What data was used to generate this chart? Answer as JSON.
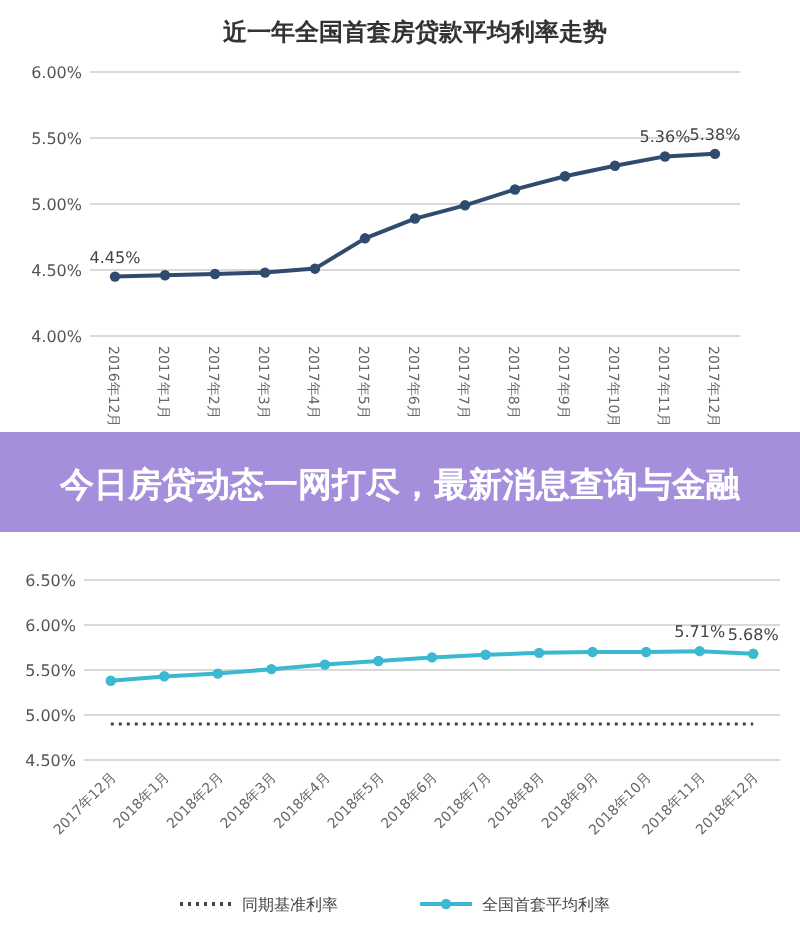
{
  "chart_data": [
    {
      "type": "line",
      "title": "近一年全国首套房贷款平均利率走势",
      "categories": [
        "2016年12月",
        "2017年1月",
        "2017年2月",
        "2017年3月",
        "2017年4月",
        "2017年5月",
        "2017年6月",
        "2017年7月",
        "2017年8月",
        "2017年9月",
        "2017年10月",
        "2017年11月",
        "2017年12月"
      ],
      "series": [
        {
          "color": "#2f4b6e",
          "values": [
            4.45,
            4.46,
            4.47,
            4.48,
            4.51,
            4.74,
            4.89,
            4.99,
            5.11,
            5.21,
            5.29,
            5.36,
            5.38
          ],
          "value_labels": [
            "4.45%",
            null,
            null,
            null,
            null,
            null,
            null,
            null,
            null,
            null,
            null,
            "5.36%",
            "5.38%"
          ]
        }
      ],
      "ylim": [
        4,
        6
      ],
      "yticks": [
        {
          "value": 4,
          "label": "4.00%"
        },
        {
          "value": 4.5,
          "label": "4.50%"
        },
        {
          "value": 5,
          "label": "5.00%"
        },
        {
          "value": 5.5,
          "label": "5.50%"
        },
        {
          "value": 6,
          "label": "6.00%"
        }
      ],
      "grid": "y",
      "marker": "circle",
      "annotations": [
        "今日房贷动态一网打尽，最新消息查询与金融"
      ]
    },
    {
      "type": "line",
      "categories": [
        "2017年12月",
        "2018年1月",
        "2018年2月",
        "2018年3月",
        "2018年4月",
        "2018年5月",
        "2018年6月",
        "2018年7月",
        "2018年8月",
        "2018年9月",
        "2018年10月",
        "2018年11月",
        "2018年12月"
      ],
      "series": [
        {
          "name": "同期基准利率",
          "color": "#444444",
          "line_style": "dotted",
          "marker": "none",
          "values": [
            4.9,
            4.9,
            4.9,
            4.9,
            4.9,
            4.9,
            4.9,
            4.9,
            4.9,
            4.9,
            4.9,
            4.9,
            4.9
          ]
        },
        {
          "name": "全国首套平均利率",
          "color": "#3cb8d0",
          "marker": "circle",
          "values": [
            5.38,
            5.43,
            5.46,
            5.51,
            5.56,
            5.6,
            5.64,
            5.67,
            5.69,
            5.7,
            5.7,
            5.71,
            5.68
          ],
          "value_labels": [
            null,
            null,
            null,
            null,
            null,
            null,
            null,
            null,
            null,
            null,
            null,
            "5.71%",
            "5.68%"
          ]
        }
      ],
      "ylim": [
        4.5,
        6.5
      ],
      "yticks": [
        {
          "value": 4.5,
          "label": "4.50%"
        },
        {
          "value": 5,
          "label": "5.00%"
        },
        {
          "value": 5.5,
          "label": "5.50%"
        },
        {
          "value": 6,
          "label": "6.00%"
        },
        {
          "value": 6.5,
          "label": "6.50%"
        }
      ],
      "grid": "y",
      "legend": "bottom"
    }
  ]
}
